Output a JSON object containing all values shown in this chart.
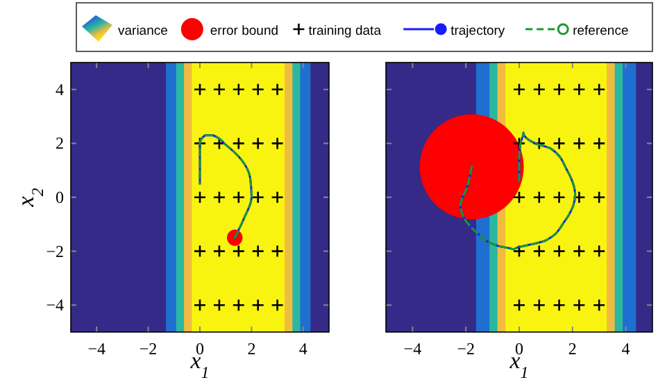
{
  "chart_data": [
    {
      "type": "scatter",
      "xlabel": "x$_{1}$",
      "ylabel": "x$_{2}$",
      "xlim": [
        -5,
        5
      ],
      "ylim": [
        -5,
        5
      ],
      "xticks": [
        -4,
        -2,
        0,
        2,
        4
      ],
      "yticks": [
        -4,
        -2,
        0,
        2,
        4
      ],
      "legend": "top",
      "bands": [
        {
          "axis": "x",
          "from": -5,
          "to": -1.3,
          "color": "#352a87"
        },
        {
          "axis": "x",
          "from": -1.3,
          "to": -0.9,
          "color": "#1f6fd0"
        },
        {
          "axis": "x",
          "from": -0.9,
          "to": -0.6,
          "color": "#2bb7a0"
        },
        {
          "axis": "x",
          "from": -0.6,
          "to": -0.3,
          "color": "#f0bb40"
        },
        {
          "axis": "x",
          "from": -0.3,
          "to": 3.3,
          "color": "#f9f40f",
          "label": "variance"
        },
        {
          "axis": "x",
          "from": 3.3,
          "to": 3.6,
          "color": "#f0bb40"
        },
        {
          "axis": "x",
          "from": 3.6,
          "to": 3.9,
          "color": "#2bb7a0"
        },
        {
          "axis": "x",
          "from": 3.9,
          "to": 4.3,
          "color": "#1f6fd0"
        },
        {
          "axis": "x",
          "from": 4.3,
          "to": 5,
          "color": "#352a87"
        }
      ],
      "series": [
        {
          "name": "error bound",
          "color": "#ff0000",
          "x": [
            1.35
          ],
          "values": [
            -1.5
          ],
          "errors": [
            0.3
          ],
          "xerrors": [
            0.3
          ]
        },
        {
          "name": "training data",
          "marker": "cross",
          "color": "#000000",
          "x": [
            0,
            0.75,
            1.5,
            2.25,
            3,
            0,
            0.75,
            1.5,
            2.25,
            3,
            0,
            0.75,
            1.5,
            2.25,
            3,
            0,
            0.75,
            1.5,
            2.25,
            3,
            0,
            0.75,
            1.5,
            2.25,
            3
          ],
          "values": [
            4,
            4,
            4,
            4,
            4,
            2,
            2,
            2,
            2,
            2,
            0,
            0,
            0,
            0,
            0,
            -2,
            -2,
            -2,
            -2,
            -2,
            -4,
            -4,
            -4,
            -4,
            -4
          ]
        },
        {
          "name": "trajectory",
          "type": "line",
          "line_style": "solid",
          "color": "#1a1aff",
          "x": [
            1.35,
            1.7,
            2.0,
            1.95,
            1.6,
            1.0,
            0.5,
            0.2,
            0.0,
            0.0,
            0.0
          ],
          "values": [
            -1.5,
            -0.8,
            0,
            0.7,
            1.4,
            1.95,
            2.3,
            2.3,
            2.0,
            1.2,
            0.5
          ]
        },
        {
          "name": "reference",
          "type": "line",
          "line_style": "dashed",
          "color": "#1a9a2a",
          "x": [
            1.35,
            1.7,
            2.0,
            1.95,
            1.6,
            1.0,
            0.5,
            0.2,
            0.0,
            0.0,
            0.0
          ],
          "values": [
            -1.5,
            -0.8,
            0,
            0.7,
            1.4,
            1.95,
            2.3,
            2.3,
            2.0,
            1.2,
            0.5
          ]
        }
      ]
    },
    {
      "type": "scatter",
      "xlabel": "x$_{1}$",
      "xlim": [
        -5,
        5
      ],
      "ylim": [
        -5,
        5
      ],
      "xticks": [
        -4,
        -2,
        0,
        2,
        4
      ],
      "yticks": [
        -4,
        -2,
        0,
        2,
        4
      ],
      "tick_labels": "x",
      "bands": [
        {
          "axis": "x",
          "from": -5,
          "to": -1.6,
          "color": "#352a87"
        },
        {
          "axis": "x",
          "from": -1.6,
          "to": -1.1,
          "color": "#1f6fd0"
        },
        {
          "axis": "x",
          "from": -1.1,
          "to": -0.8,
          "color": "#2bb7a0"
        },
        {
          "axis": "x",
          "from": -0.8,
          "to": -0.5,
          "color": "#f0bb40"
        },
        {
          "axis": "x",
          "from": -0.5,
          "to": 3.3,
          "color": "#f9f40f"
        },
        {
          "axis": "x",
          "from": 3.3,
          "to": 3.6,
          "color": "#f0bb40"
        },
        {
          "axis": "x",
          "from": 3.6,
          "to": 3.9,
          "color": "#2bb7a0"
        },
        {
          "axis": "x",
          "from": 3.9,
          "to": 4.4,
          "color": "#1f6fd0"
        },
        {
          "axis": "x",
          "from": 4.4,
          "to": 5,
          "color": "#352a87"
        }
      ],
      "series": [
        {
          "color": "#ff0000",
          "x": [
            -1.78
          ],
          "values": [
            1.13
          ],
          "errors": [
            1.95
          ],
          "xerrors": [
            1.95
          ]
        },
        {
          "marker": "cross",
          "color": "#000000",
          "x": [
            0,
            0.75,
            1.5,
            2.25,
            3,
            0,
            0.75,
            1.5,
            2.25,
            3,
            0,
            0.75,
            1.5,
            2.25,
            3,
            0,
            0.75,
            1.5,
            2.25,
            3,
            0,
            0.75,
            1.5,
            2.25,
            3
          ],
          "values": [
            4,
            4,
            4,
            4,
            4,
            2,
            2,
            2,
            2,
            2,
            0,
            0,
            0,
            0,
            0,
            -2,
            -2,
            -2,
            -2,
            -2,
            -4,
            -4,
            -4,
            -4,
            -4
          ]
        },
        {
          "type": "line",
          "line_style": "solid",
          "color": "#1a1aff",
          "x": [
            -1.78,
            -1.95,
            -2.2,
            -1.6,
            -0.8,
            -0.2,
            1.0,
            1.7,
            2.1,
            1.8,
            1.2,
            0.6,
            0.16,
            0.05,
            0.0,
            0.0
          ],
          "values": [
            1.13,
            0.4,
            -0.3,
            -1.3,
            -1.8,
            -1.95,
            -1.6,
            -0.9,
            0.1,
            1.0,
            1.8,
            2.0,
            2.4,
            2.0,
            1.4,
            0.6
          ]
        },
        {
          "type": "line",
          "line_style": "dashed",
          "color": "#1a9a2a",
          "x": [
            -1.78,
            -1.95,
            -2.2,
            -1.6,
            -0.8,
            -0.2,
            1.0,
            1.7,
            2.1,
            1.8,
            1.2,
            0.6,
            0.16,
            0.05,
            0.0,
            0.0
          ],
          "values": [
            1.13,
            0.4,
            -0.3,
            -1.3,
            -1.8,
            -1.95,
            -1.6,
            -0.9,
            0.1,
            1.0,
            1.8,
            2.0,
            2.4,
            2.0,
            1.4,
            0.6
          ]
        }
      ]
    }
  ]
}
